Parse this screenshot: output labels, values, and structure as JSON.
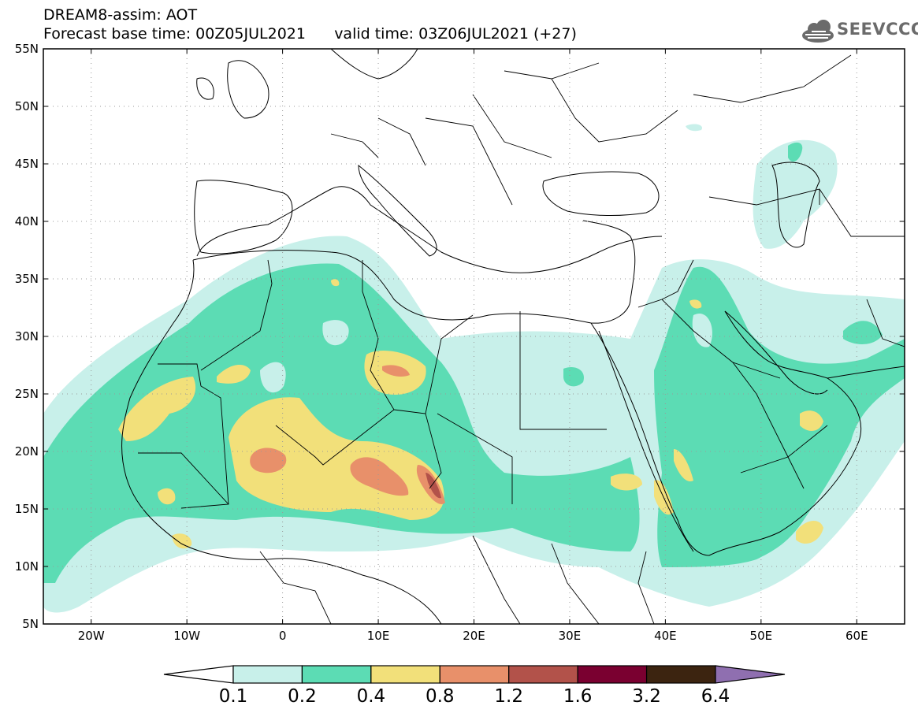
{
  "header": {
    "title": "DREAM8-assim: AOT",
    "subtitle": "Forecast base time: 00Z05JUL2021      valid time: 03Z06JUL2021 (+27)"
  },
  "logo": {
    "text": "SEEVCCC",
    "icon": "cloud-logo-icon"
  },
  "map": {
    "lat_labels": [
      "55N",
      "50N",
      "45N",
      "40N",
      "35N",
      "30N",
      "25N",
      "20N",
      "15N",
      "10N",
      "5N"
    ],
    "lon_labels": [
      "20W",
      "10W",
      "0",
      "10E",
      "20E",
      "30E",
      "40E",
      "50E",
      "60E"
    ],
    "lat_range": [
      5,
      55
    ],
    "lon_range": [
      -25,
      65
    ],
    "grid": true
  },
  "colorbar": {
    "labels": [
      "0.1",
      "0.2",
      "0.4",
      "0.8",
      "1.2",
      "1.6",
      "3.2",
      "6.4"
    ],
    "colors": [
      "#ffffff",
      "#c8f0ea",
      "#5cdcb4",
      "#f2e07a",
      "#e8906a",
      "#b2524a",
      "#7a0030",
      "#3c2410",
      "#8f6fb0"
    ]
  },
  "palette": {
    "level1": "#c8f0ea",
    "level2": "#5cdcb4",
    "level3": "#f2e07a",
    "level4": "#e8906a",
    "level5": "#b2524a",
    "level6": "#7a0030"
  }
}
